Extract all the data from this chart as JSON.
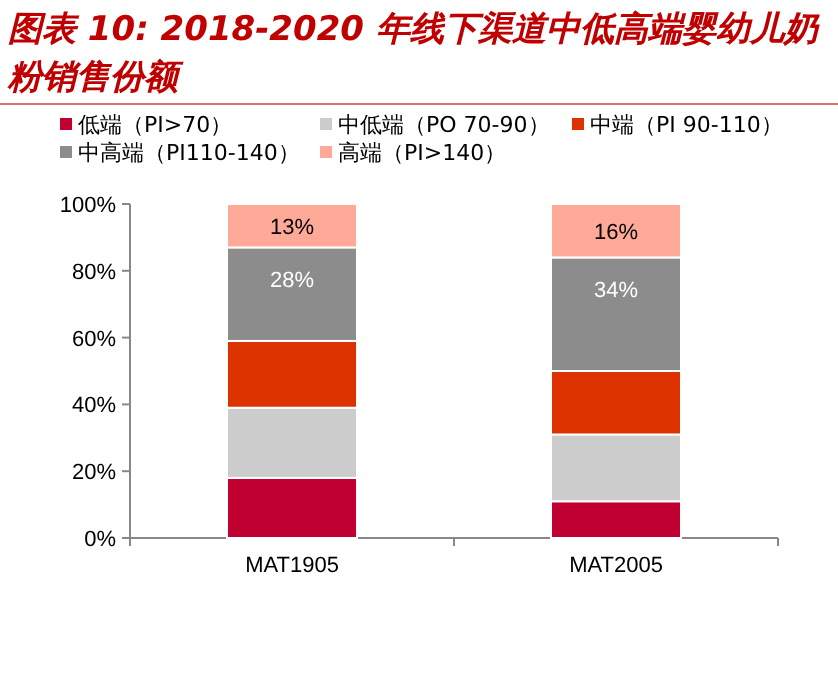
{
  "chart_data": {
    "type": "bar",
    "title": "图表 10: 2018-2020 年线下渠道中低高端婴幼儿奶粉销售份额",
    "categories": [
      "MAT1905",
      "MAT2005"
    ],
    "stacked": true,
    "series": [
      {
        "name": "低端（PI>70）",
        "color": "#c00030",
        "values": [
          18,
          11
        ]
      },
      {
        "name": "中低端（PO 70-90）",
        "color": "#cccccc",
        "values": [
          21,
          20
        ]
      },
      {
        "name": "中端（PI 90-110）",
        "color": "#dd3300",
        "values": [
          20,
          19
        ]
      },
      {
        "name": "中高端（PI110-140）",
        "color": "#8c8c8c",
        "values": [
          28,
          34
        ],
        "value_labels": [
          "28%",
          "34%"
        ]
      },
      {
        "name": "高端（PI>140）",
        "color": "#ffaa99",
        "values": [
          13,
          16
        ],
        "value_labels": [
          "13%",
          "16%"
        ]
      }
    ],
    "ylim": [
      0,
      100
    ],
    "yticks": [
      {
        "value": 0,
        "label": "0%"
      },
      {
        "value": 20,
        "label": "20%"
      },
      {
        "value": 40,
        "label": "40%"
      },
      {
        "value": 60,
        "label": "60%"
      },
      {
        "value": 80,
        "label": "80%"
      },
      {
        "value": 100,
        "label": "100%"
      }
    ],
    "legend": "top",
    "grid": false
  }
}
